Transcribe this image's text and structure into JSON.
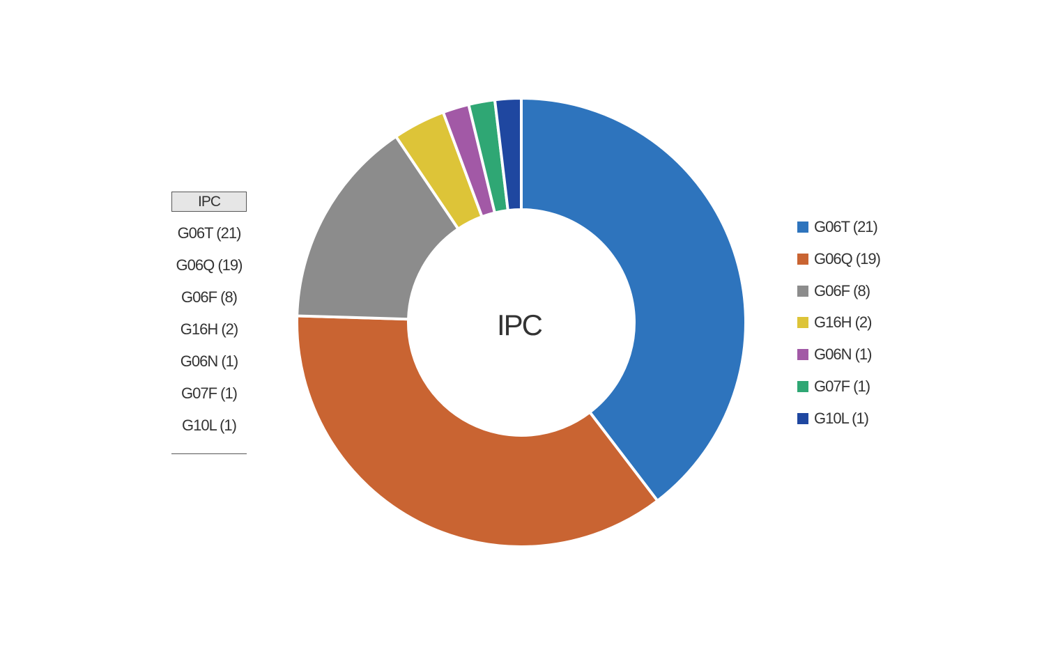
{
  "chart_data": {
    "type": "pie",
    "variant": "donut",
    "center_label": "IPC",
    "categories": [
      "G06T (21)",
      "G06Q (19)",
      "G06F (8)",
      "G16H (2)",
      "G06N (1)",
      "G07F (1)",
      "G10L (1)"
    ],
    "values": [
      21,
      19,
      8,
      2,
      1,
      1,
      1
    ],
    "colors": [
      "#2e74bd",
      "#c96432",
      "#8c8c8c",
      "#ddc438",
      "#a259a6",
      "#2fa774",
      "#1f47a0"
    ],
    "legend_placement": "right",
    "grid": false
  },
  "table": {
    "header": "IPC",
    "rows": [
      "G06T (21)",
      "G06Q (19)",
      "G06F (8)",
      "G16H (2)",
      "G06N (1)",
      "G07F (1)",
      "G10L (1)"
    ]
  },
  "legend": {
    "items": [
      {
        "label": "G06T (21)",
        "color": "#2e74bd"
      },
      {
        "label": "G06Q (19)",
        "color": "#c96432"
      },
      {
        "label": "G06F (8)",
        "color": "#8c8c8c"
      },
      {
        "label": "G16H (2)",
        "color": "#ddc438"
      },
      {
        "label": "G06N (1)",
        "color": "#a259a6"
      },
      {
        "label": "G07F (1)",
        "color": "#2fa774"
      },
      {
        "label": "G10L (1)",
        "color": "#1f47a0"
      }
    ]
  }
}
